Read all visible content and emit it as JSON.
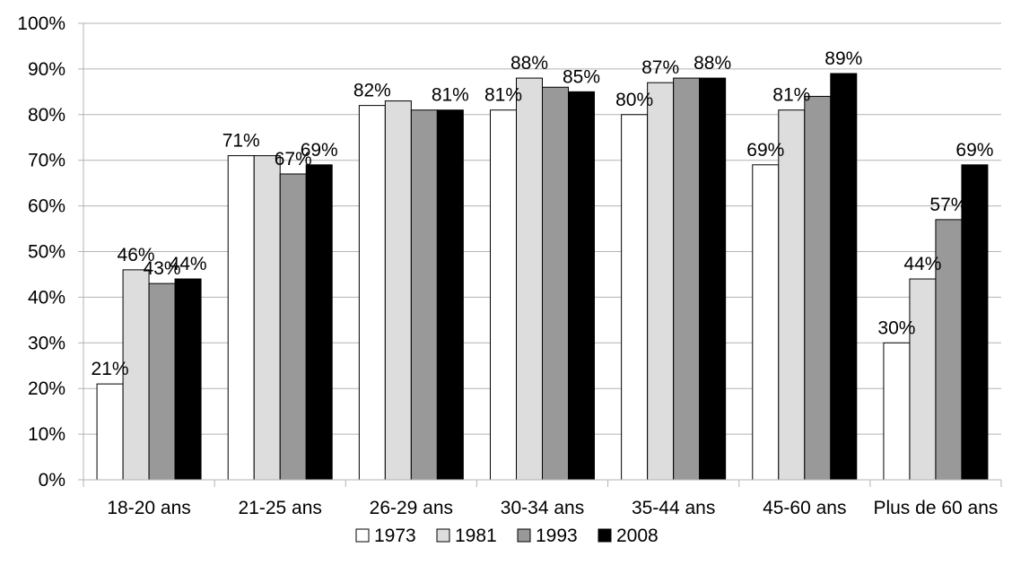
{
  "chart_data": {
    "type": "bar",
    "title": "",
    "xlabel": "",
    "ylabel": "",
    "ylim": [
      0,
      100
    ],
    "y_ticks": [
      "0%",
      "10%",
      "20%",
      "30%",
      "40%",
      "50%",
      "60%",
      "70%",
      "80%",
      "90%",
      "100%"
    ],
    "y_tick_values": [
      0,
      10,
      20,
      30,
      40,
      50,
      60,
      70,
      80,
      90,
      100
    ],
    "grid": true,
    "legend_position": "bottom",
    "categories": [
      "18-20 ans",
      "21-25 ans",
      "26-29 ans",
      "30-34 ans",
      "35-44 ans",
      "45-60 ans",
      "Plus de 60 ans"
    ],
    "series": [
      {
        "name": "1973",
        "color": "#ffffff",
        "values": [
          21,
          71,
          82,
          81,
          80,
          69,
          30
        ],
        "labels": [
          "21%",
          "71%",
          "82%",
          "81%",
          "80%",
          "69%",
          "30%"
        ]
      },
      {
        "name": "1981",
        "color": "#dddddd",
        "values": [
          46,
          71,
          83,
          88,
          87,
          81,
          44
        ],
        "labels": [
          "46%",
          "",
          "",
          "88%",
          "87%",
          "81%",
          "44%"
        ]
      },
      {
        "name": "1993",
        "color": "#999999",
        "values": [
          43,
          67,
          81,
          86,
          88,
          84,
          57
        ],
        "labels": [
          "43%",
          "67%",
          "",
          "",
          "",
          "",
          "57%"
        ]
      },
      {
        "name": "2008",
        "color": "#000000",
        "values": [
          44,
          69,
          81,
          85,
          88,
          89,
          69
        ],
        "labels": [
          "44%",
          "69%",
          "81%",
          "85%",
          "88%",
          "89%",
          "69%"
        ]
      }
    ]
  }
}
